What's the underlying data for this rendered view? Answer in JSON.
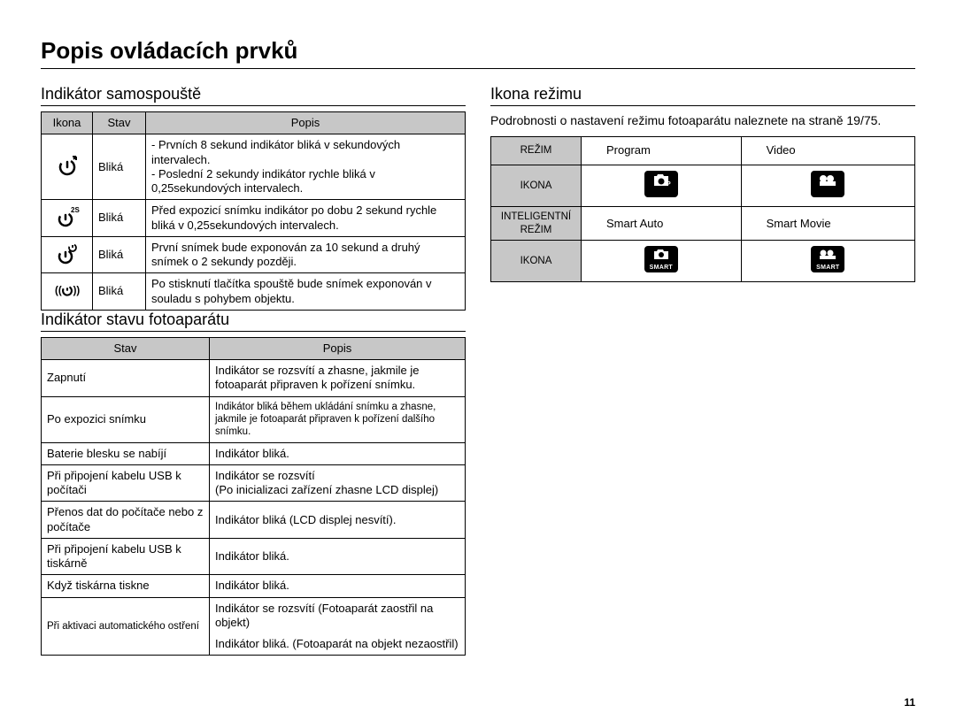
{
  "page_number": "11",
  "title": "Popis ovládacích prvků",
  "left": {
    "section1": {
      "heading": "Indikátor samospouště",
      "cols": [
        "Ikona",
        "Stav",
        "Popis"
      ],
      "rows": [
        {
          "icon": "timer-10",
          "stav": "Bliká",
          "popis": "- Prvních 8 sekund indikátor bliká v sekundových intervalech.\n- Poslední 2 sekundy indikátor rychle bliká v 0,25sekundových intervalech."
        },
        {
          "icon": "timer-2s",
          "stav": "Bliká",
          "popis": "Před expozicí snímku indikátor po dobu 2 sekund rychle bliká v 0,25sekundových intervalech."
        },
        {
          "icon": "timer-double",
          "stav": "Bliká",
          "popis": "První snímek bude exponován za 10 sekund a druhý snímek o 2 sekundy později."
        },
        {
          "icon": "timer-motion",
          "stav": "Bliká",
          "popis": "Po stisknutí tlačítka spouště bude snímek exponován v souladu s pohybem objektu."
        }
      ]
    },
    "section2": {
      "heading": "Indikátor stavu fotoaparátu",
      "cols": [
        "Stav",
        "Popis"
      ],
      "rows": [
        {
          "stav": "Zapnutí",
          "popis": "Indikátor se rozsvítí a zhasne, jakmile je fotoaparát připraven k pořízení snímku."
        },
        {
          "stav": "Po expozici snímku",
          "popis": "Indikátor bliká během ukládání snímku a zhasne, jakmile je fotoaparát připraven k pořízení dalšího snímku.",
          "popis_small": true
        },
        {
          "stav": "Baterie blesku se nabíjí",
          "popis": "Indikátor bliká."
        },
        {
          "stav": "Při připojení kabelu USB k počítači",
          "popis": "Indikátor se rozsvítí\n(Po inicializaci zařízení zhasne LCD displej)"
        },
        {
          "stav": "Přenos dat do počítače nebo z počítače",
          "popis": "Indikátor bliká (LCD displej nesvítí)."
        },
        {
          "stav": "Při připojení kabelu USB k tiskárně",
          "popis": "Indikátor bliká."
        },
        {
          "stav": "Když tiskárna tiskne",
          "popis": "Indikátor bliká."
        }
      ],
      "af_row": {
        "stav": "Při aktivaci automatického ostření",
        "line1": "Indikátor se rozsvítí (Fotoaparát zaostřil na objekt)",
        "line2": "Indikátor bliká. (Fotoaparát na objekt nezaostřil)"
      }
    }
  },
  "right": {
    "heading": "Ikona režimu",
    "intro": "Podrobnosti o nastavení režimu fotoaparátu naleznete na straně 19/75.",
    "labels": {
      "rezim": "REŽIM",
      "ikona": "IKONA",
      "int_rezim": "INTELIGENTNÍ REŽIM"
    },
    "vals": {
      "program": "Program",
      "video": "Video",
      "smart_auto": "Smart Auto",
      "smart_movie": "Smart Movie"
    }
  },
  "colors": {
    "header_bg": "#c7c7c7",
    "border": "#000000",
    "text": "#000000",
    "icon_box_bg": "#000000",
    "icon_box_fg": "#ffffff"
  }
}
